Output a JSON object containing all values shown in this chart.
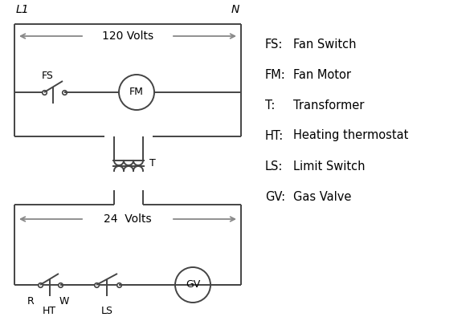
{
  "bg_color": "#ffffff",
  "line_color": "#444444",
  "text_color": "#000000",
  "legend_items": [
    [
      "FS:",
      "Fan Switch"
    ],
    [
      "FM:",
      "Fan Motor"
    ],
    [
      "T:",
      "Transformer"
    ],
    [
      "HT:",
      "Heating thermostat"
    ],
    [
      "LS:",
      "Limit Switch"
    ],
    [
      "GV:",
      "Gas Valve"
    ]
  ],
  "label_font": 9,
  "legend_font": 10.5
}
